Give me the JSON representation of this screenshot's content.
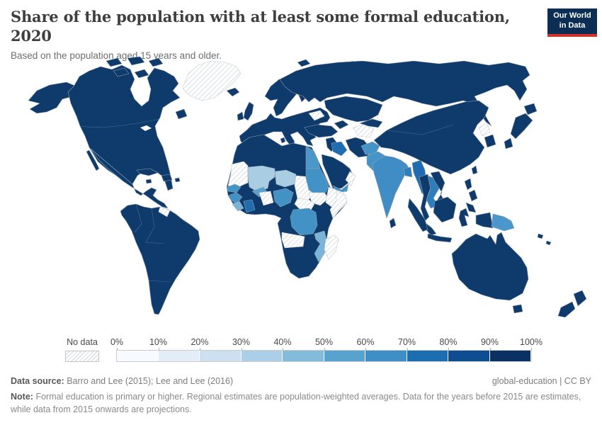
{
  "header": {
    "title": "Share of the population with at least some formal education, 2020",
    "subtitle": "Based on the population aged 15 years and older."
  },
  "logo": {
    "line1": "Our World",
    "line2": "in Data",
    "bg": "#0d2e54",
    "bar_color": "#d0352c"
  },
  "legend": {
    "no_data_label": "No data",
    "ticks": [
      "0%",
      "10%",
      "20%",
      "30%",
      "40%",
      "50%",
      "60%",
      "70%",
      "80%",
      "90%",
      "100%"
    ],
    "bin_colors": [
      "#f7fbff",
      "#e2edf8",
      "#cde0f1",
      "#abcfe6",
      "#83bcdb",
      "#58a2cf",
      "#3d8ec5",
      "#1d6eb0",
      "#0f4d92",
      "#0a3161"
    ]
  },
  "map": {
    "border_color": "#93a3af",
    "nodata_stroke": "#c3c9ce",
    "regions": {
      "alaska": "#0e3a6c",
      "canada-usa": "#0e3a6c",
      "mexico-central-america": "#0e3a6c",
      "baja-california": "#0e3a6c",
      "arctic-islands": "#0e3a6c",
      "greenland": "nodata",
      "newfoundland": "#0e3a6c",
      "iceland": "#0e3a6c",
      "cuba": "#0e3a6c",
      "hispaniola": "#0e3a6c",
      "jamaica": "#0e3a6c",
      "puerto-rico": "#0e3a6c",
      "south-america": "#0e3a6c",
      "guyana-suriname": "nodata",
      "europe-mainland": "#0e3a6c",
      "scandinavia": "#0e3a6c",
      "finland": "#0e3a6c",
      "uk": "#0e3a6c",
      "ireland": "#0e3a6c",
      "belarus": "nodata",
      "svalbard": "#0e3a6c",
      "novaya-zemlya": "#0e3a6c",
      "sardinia": "#0e3a6c",
      "sicily": "#0e3a6c",
      "russia": "#0e3a6c",
      "kazakhstan": "#0e3a6c",
      "central-asian-states": "#0e3a6c",
      "turkmenistan": "nodata",
      "caucasus": "#0e3a6c",
      "turkey": "#0e3a6c",
      "levant": "#0e3a6c",
      "iraq": "#1f6db0",
      "iran": "#0e3a6c",
      "saudi-arabia": "#0e3a6c",
      "yemen": "#4292c6",
      "oman": "nodata",
      "afghanistan": "#4594c7",
      "pakistan": "#4594c7",
      "india": "#3f8dc4",
      "sri-lanka": "#0e3a6c",
      "bangladesh": "#2e7ebc",
      "myanmar": "#1f6db0",
      "thailand": "#0e3a6c",
      "laos-cambodia": "#2e7ebc",
      "vietnam": "#0e3a6c",
      "malaysia": "#0e3a6c",
      "china": "#0e3a6c",
      "north-korea": "nodata",
      "south-korea": "#0e3a6c",
      "japan": "#0e3a6c",
      "taiwan": "#0e3a6c",
      "philippines": "#0e3a6c",
      "indonesia": "#0e3a6c",
      "papua-new-guinea": "#4a97cb",
      "solomon-islands": "#0e3a6c",
      "australia": "#0e3a6c",
      "tasmania": "#0e3a6c",
      "new-zealand": "#0e3a6c",
      "africa-base": "#0e3a6c",
      "western-sahara-mauritania": "nodata",
      "senegal": "#4594c7",
      "mali": "#a9cde3",
      "niger": "#a9cde3",
      "burkina-faso": "#58a2cf",
      "guinea": "#4292c6",
      "sierra-leone-liberia": "#7ab5d8",
      "ivory-coast": "#1f6db0",
      "togo-benin": "nodata",
      "nigeria": "#4292c6",
      "chad": "nodata",
      "egypt": "#4b97c9",
      "sudan": "#4292c6",
      "south-sudan": "nodata",
      "ethiopia": "nodata",
      "somalia": "nodata",
      "central-african-republic": "nodata",
      "dr-congo": "#4292c6",
      "angola": "nodata",
      "mozambique-malawi": "#7ab5d8",
      "madagascar": "nodata"
    }
  },
  "footer": {
    "source_label": "Data source:",
    "source_text": "Barro and Lee (2015); Lee and Lee (2016)",
    "license_text": "global-education | CC BY",
    "note_label": "Note:",
    "note_text": "Formal education is primary or higher. Regional estimates are population-weighted averages. Data for the years before 2015 are estimates, while data from 2015 onwards are projections."
  }
}
